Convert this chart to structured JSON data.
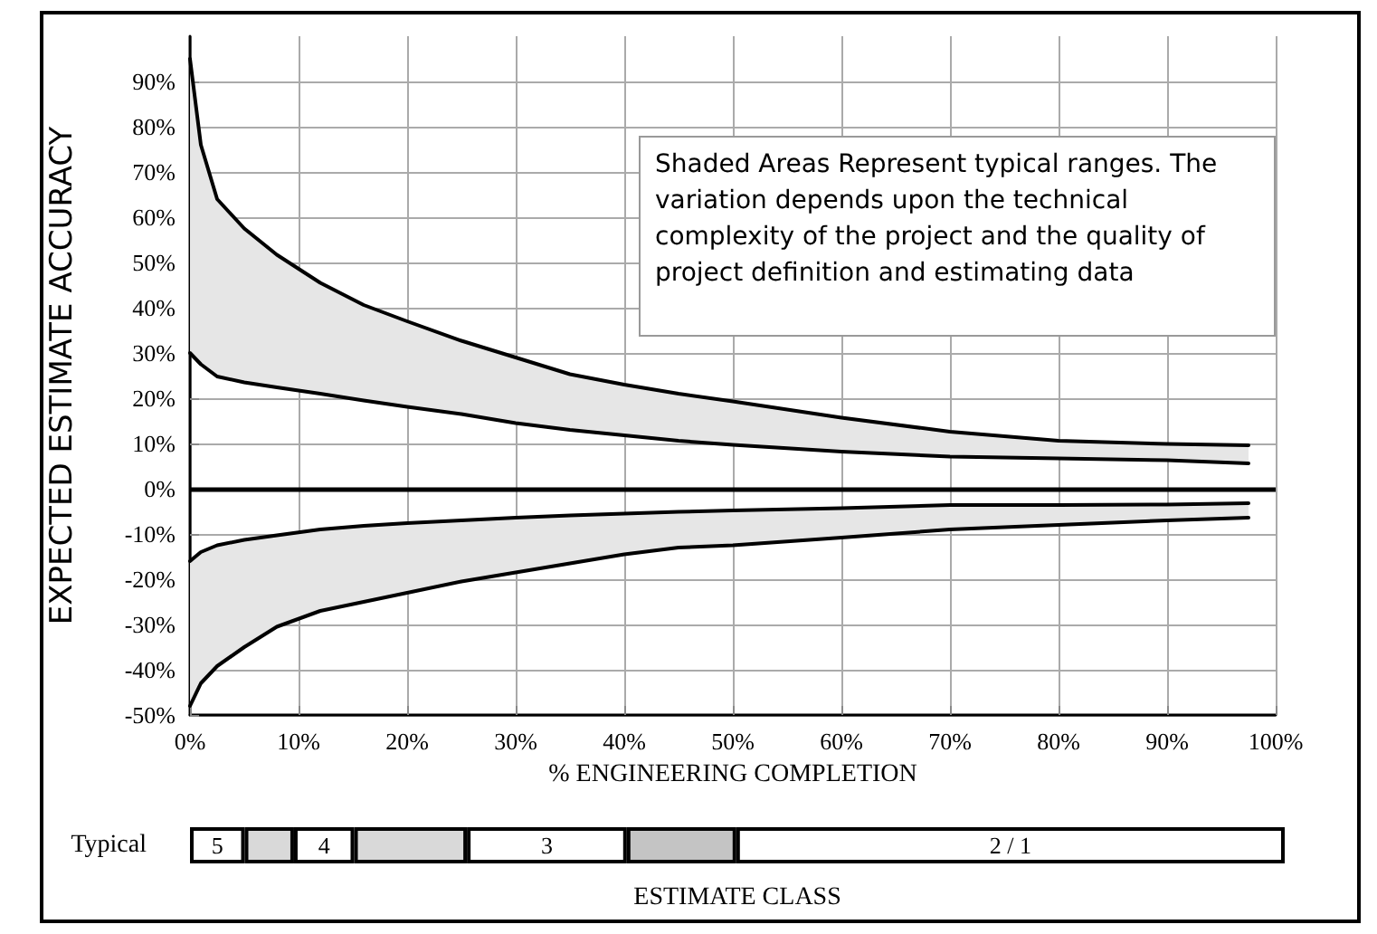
{
  "chart_data": [
    {
      "type": "line",
      "xlabel": "% ENGINEERING COMPLETION",
      "ylabel": "EXPECTED ESTIMATE ACCURACY",
      "annotations": [
        "Shaded Areas Represent typical ranges. The variation depends upon the technical complexity of the project and the quality of project definition and estimating data"
      ],
      "xlim": [
        0,
        100
      ],
      "ylim": [
        -50,
        100
      ],
      "xticks": [
        {
          "value": 0,
          "label": "0%"
        },
        {
          "value": 10,
          "label": "10%"
        },
        {
          "value": 20,
          "label": "20%"
        },
        {
          "value": 30,
          "label": "30%"
        },
        {
          "value": 40,
          "label": "40%"
        },
        {
          "value": 50,
          "label": "50%"
        },
        {
          "value": 60,
          "label": "60%"
        },
        {
          "value": 70,
          "label": "70%"
        },
        {
          "value": 80,
          "label": "80%"
        },
        {
          "value": 90,
          "label": "90%"
        },
        {
          "value": 100,
          "label": "100%"
        }
      ],
      "yticks": [
        {
          "value": -50,
          "label": "-50%"
        },
        {
          "value": -40,
          "label": "-40%"
        },
        {
          "value": -30,
          "label": "-30%"
        },
        {
          "value": -20,
          "label": "-20%"
        },
        {
          "value": -10,
          "label": "-10%"
        },
        {
          "value": 0,
          "label": "0%"
        },
        {
          "value": 10,
          "label": "10%"
        },
        {
          "value": 20,
          "label": "20%"
        },
        {
          "value": 30,
          "label": "30%"
        },
        {
          "value": 40,
          "label": "40%"
        },
        {
          "value": 50,
          "label": "50%"
        },
        {
          "value": 60,
          "label": "60%"
        },
        {
          "value": 70,
          "label": "70%"
        },
        {
          "value": 80,
          "label": "80%"
        },
        {
          "value": 90,
          "label": "90%"
        }
      ],
      "grid": true,
      "marker": "none",
      "line_style": "solid",
      "ref_lines": [
        {
          "axis": "y",
          "value": 0,
          "color": "#000000"
        }
      ],
      "x": [
        0,
        1,
        2.5,
        5,
        8,
        12,
        16,
        20,
        25,
        30,
        35,
        40,
        45,
        50,
        60,
        70,
        80,
        90,
        97.5
      ],
      "series": [
        {
          "color": "#000000",
          "values": [
            95,
            76,
            64,
            57.5,
            51.7,
            45.5,
            40.6,
            37,
            32.7,
            29,
            25.3,
            23,
            21,
            19.3,
            15.7,
            12.6,
            10.6,
            9.9,
            9.6
          ],
          "lower": [
            30,
            27.5,
            24.8,
            23.5,
            22.4,
            21,
            19.5,
            18.1,
            16.5,
            14.5,
            13,
            11.8,
            10.6,
            9.7,
            8.2,
            7.1,
            6.7,
            6.3,
            5.6
          ],
          "upper": [
            95,
            76,
            64,
            57.5,
            51.7,
            45.5,
            40.6,
            37,
            32.7,
            29,
            25.3,
            23,
            21,
            19.3,
            15.7,
            12.6,
            10.6,
            9.9,
            9.6
          ]
        },
        {
          "color": "#000000",
          "values": [
            30,
            27.5,
            24.8,
            23.5,
            22.4,
            21,
            19.5,
            18.1,
            16.5,
            14.5,
            13,
            11.8,
            10.6,
            9.7,
            8.2,
            7.1,
            6.7,
            6.3,
            5.6
          ]
        },
        {
          "color": "#000000",
          "values": [
            -16,
            -14,
            -12.5,
            -11.3,
            -10.3,
            -9,
            -8.2,
            -7.6,
            -7,
            -6.4,
            -5.9,
            -5.5,
            -5.1,
            -4.8,
            -4.3,
            -3.6,
            -3.6,
            -3.5,
            -3.2
          ],
          "lower": [
            -48,
            -43,
            -39.2,
            -35,
            -30.5,
            -27,
            -25,
            -23,
            -20.5,
            -18.5,
            -16.5,
            -14.5,
            -13,
            -12.5,
            -10.8,
            -9,
            -8,
            -7,
            -6.4
          ],
          "upper": [
            -16,
            -14,
            -12.5,
            -11.3,
            -10.3,
            -9,
            -8.2,
            -7.6,
            -7,
            -6.4,
            -5.9,
            -5.5,
            -5.1,
            -4.8,
            -4.3,
            -3.6,
            -3.6,
            -3.5,
            -3.2
          ]
        },
        {
          "color": "#000000",
          "values": [
            -48,
            -43,
            -39.2,
            -35,
            -30.5,
            -27,
            -25,
            -23,
            -20.5,
            -18.5,
            -16.5,
            -14.5,
            -13,
            -12.5,
            -10.8,
            -9,
            -8,
            -7,
            -6.4
          ]
        }
      ]
    },
    {
      "type": "bar",
      "orientation": "horizontal",
      "stacked": true,
      "xlabel": "ESTIMATE CLASS",
      "categories": [
        "Typical"
      ],
      "xlim": [
        0,
        100
      ],
      "tick_labels": "y",
      "series": [
        {
          "name": "5",
          "color": "#ffffff",
          "values": [
            5
          ]
        },
        {
          "color": "#d9d9d9",
          "values": [
            4.5
          ]
        },
        {
          "name": "4",
          "color": "#ffffff",
          "values": [
            5.5
          ]
        },
        {
          "color": "#d9d9d9",
          "values": [
            10.3
          ]
        },
        {
          "name": "3",
          "color": "#ffffff",
          "values": [
            14.6
          ]
        },
        {
          "color": "#c4c4c4",
          "values": [
            10
          ]
        },
        {
          "name": "2 / 1",
          "color": "#ffffff",
          "values": [
            50.1
          ]
        }
      ]
    }
  ]
}
